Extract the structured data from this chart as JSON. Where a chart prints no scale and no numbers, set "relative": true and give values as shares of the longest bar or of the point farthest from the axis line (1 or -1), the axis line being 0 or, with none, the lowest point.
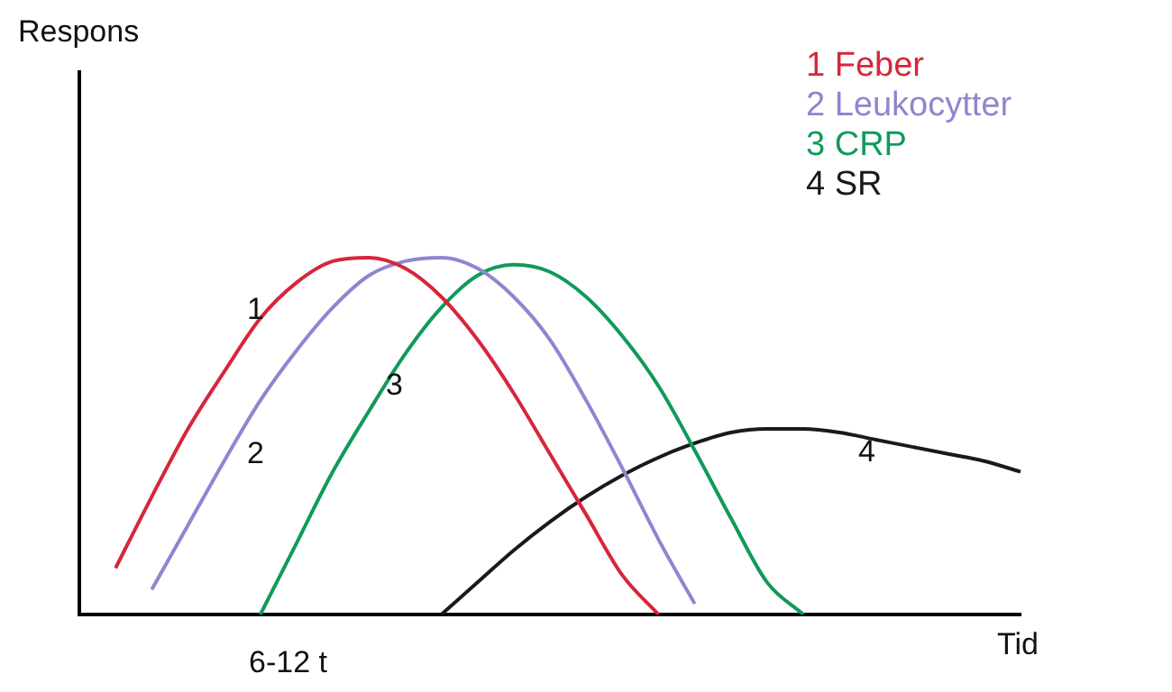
{
  "chart_data": {
    "type": "line",
    "relative": true,
    "xlabel": "Tid",
    "legend": "top right",
    "marker": "none",
    "grid": false,
    "categories": [
      null,
      null,
      null,
      null,
      null,
      null,
      null,
      null,
      null,
      null,
      null,
      null,
      null,
      null,
      null,
      null,
      null,
      null,
      null,
      null,
      null,
      null,
      null,
      null,
      null,
      null,
      null
    ],
    "series": [
      {
        "name": "1 Feber",
        "color": "#d6263a",
        "values": [
          null,
          0.13,
          0.33,
          0.52,
          0.68,
          0.83,
          0.93,
          0.99,
          1.0,
          0.97,
          0.89,
          0.77,
          0.62,
          0.45,
          0.28,
          0.11,
          0,
          null,
          null,
          null,
          null,
          null,
          null,
          null,
          null,
          null,
          null
        ]
      },
      {
        "name": "2 Leukocytter",
        "color": "#8e86d0",
        "values": [
          null,
          null,
          0.07,
          0.25,
          0.43,
          0.6,
          0.74,
          0.86,
          0.95,
          0.99,
          1.0,
          0.97,
          0.89,
          0.77,
          0.6,
          0.41,
          0.21,
          0.03,
          null,
          null,
          null,
          null,
          null,
          null,
          null,
          null,
          null
        ]
      },
      {
        "name": "3 CRP",
        "color": "#109a5a",
        "values": [
          null,
          null,
          null,
          null,
          null,
          0,
          0.2,
          0.4,
          0.57,
          0.73,
          0.86,
          0.95,
          0.98,
          0.96,
          0.89,
          0.78,
          0.64,
          0.46,
          0.27,
          0.09,
          0,
          null,
          null,
          null,
          null,
          null,
          null
        ]
      },
      {
        "name": "4 SR",
        "color": "#1a1a1a",
        "values": [
          null,
          null,
          null,
          null,
          null,
          null,
          null,
          null,
          null,
          null,
          0,
          0.09,
          0.18,
          0.26,
          0.33,
          0.39,
          0.44,
          0.48,
          0.51,
          0.52,
          0.52,
          0.51,
          0.49,
          0.47,
          0.45,
          0.43,
          0.4
        ]
      }
    ],
    "annotations": [
      "Respons",
      "1",
      "2",
      "3",
      "4",
      "6-12 t"
    ]
  }
}
